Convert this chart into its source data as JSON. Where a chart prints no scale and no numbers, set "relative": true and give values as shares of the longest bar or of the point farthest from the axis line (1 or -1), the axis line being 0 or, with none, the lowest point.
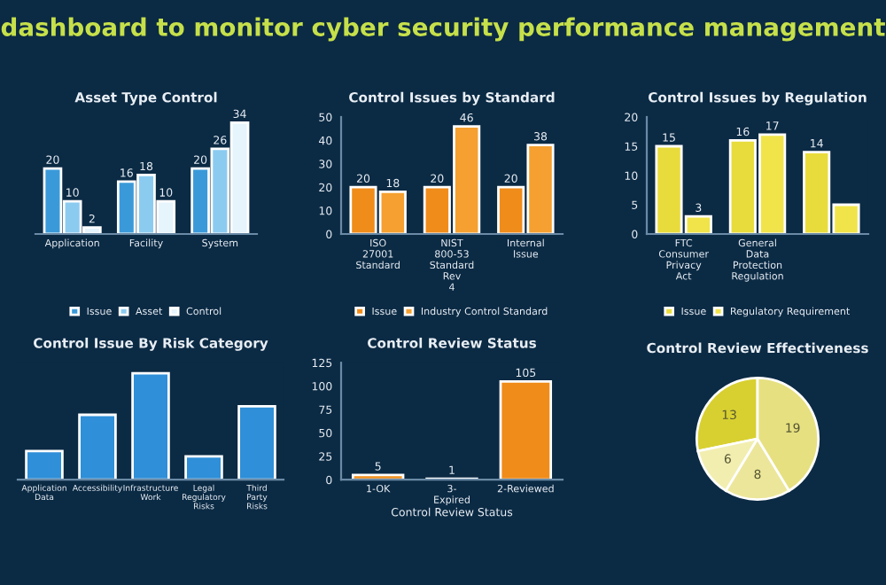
{
  "chart_data": [
    {
      "type": "other",
      "title": "dashboard to monitor cyber security performance management"
    },
    {
      "type": "bar",
      "title": "Asset Type Control",
      "categories": [
        "Application",
        "Facility",
        "System"
      ],
      "tick_labels": "x",
      "data_labels": true,
      "legend": "bottom",
      "series": [
        {
          "name": "Issue",
          "color": "#3a9ad9",
          "values": [
            20,
            16,
            20
          ]
        },
        {
          "name": "Asset",
          "color": "#8ccbf0",
          "values": [
            10,
            18,
            26
          ]
        },
        {
          "name": "Control",
          "color": "#e6f4fb",
          "values": [
            2,
            10,
            34
          ]
        }
      ]
    },
    {
      "type": "bar",
      "title": "Control Issues by Standard",
      "categories": [
        "ISO 27001 Standard",
        "NIST 800-53 Standard Rev 4",
        "Internal Issue"
      ],
      "ylim": [
        0,
        50
      ],
      "yticks": [
        0,
        10,
        20,
        30,
        40,
        50
      ],
      "data_labels": true,
      "legend": "bottom",
      "series": [
        {
          "name": "Issue",
          "color": "#f08c1a",
          "values": [
            20,
            20,
            20
          ]
        },
        {
          "name": "Industry Control Standard",
          "color": "#f5a030",
          "values": [
            18,
            46,
            38
          ]
        }
      ]
    },
    {
      "type": "bar",
      "title": "Control Issues by Regulation",
      "categories": [
        "FTC Consumer Privacy Act",
        "General Data Protection Regulation",
        null
      ],
      "ylim": [
        0,
        20
      ],
      "yticks": [
        0,
        5,
        10,
        15,
        20
      ],
      "legend": "bottom",
      "series": [
        {
          "name": "Issue",
          "color": "#e8dc3c",
          "values": [
            15,
            16,
            14
          ],
          "value_labels": [
            "15",
            "16",
            "14"
          ]
        },
        {
          "name": "Regulatory Requirement",
          "color": "#f0e44a",
          "values": [
            3,
            17,
            5
          ],
          "value_labels": [
            "3",
            "17",
            null
          ]
        }
      ]
    },
    {
      "type": "bar",
      "title": "Control Issue By Risk Category",
      "categories": [
        "Application Data",
        "Accessibility",
        "Infrastructure Work",
        "Legal Regulatory Risks",
        "Third Party Risks"
      ],
      "relative": true,
      "series": [
        {
          "color": "#2f8fd8",
          "values": [
            0.27,
            0.61,
            1,
            0.22,
            0.69
          ]
        }
      ]
    },
    {
      "type": "bar",
      "title": "Control Review Status",
      "xlabel": "Control Review Status",
      "categories": [
        "1-OK",
        "3- Expired",
        "2-Reviewed"
      ],
      "ylim": [
        0,
        125
      ],
      "yticks": [
        0,
        25,
        50,
        75,
        100,
        125
      ],
      "series": [
        {
          "color": "#f08c1a",
          "values": [
            5,
            1,
            105
          ],
          "value_labels": [
            "5",
            "1",
            "105"
          ]
        }
      ]
    },
    {
      "type": "pie",
      "title": "Control Review Effectiveness",
      "categories": [
        null,
        null,
        null,
        null
      ],
      "values": [
        13,
        6,
        8,
        19
      ],
      "colors": [
        "#d8d030",
        "#f2eeb0",
        "#ece69a",
        "#e6e080"
      ],
      "data_labels": true
    }
  ]
}
